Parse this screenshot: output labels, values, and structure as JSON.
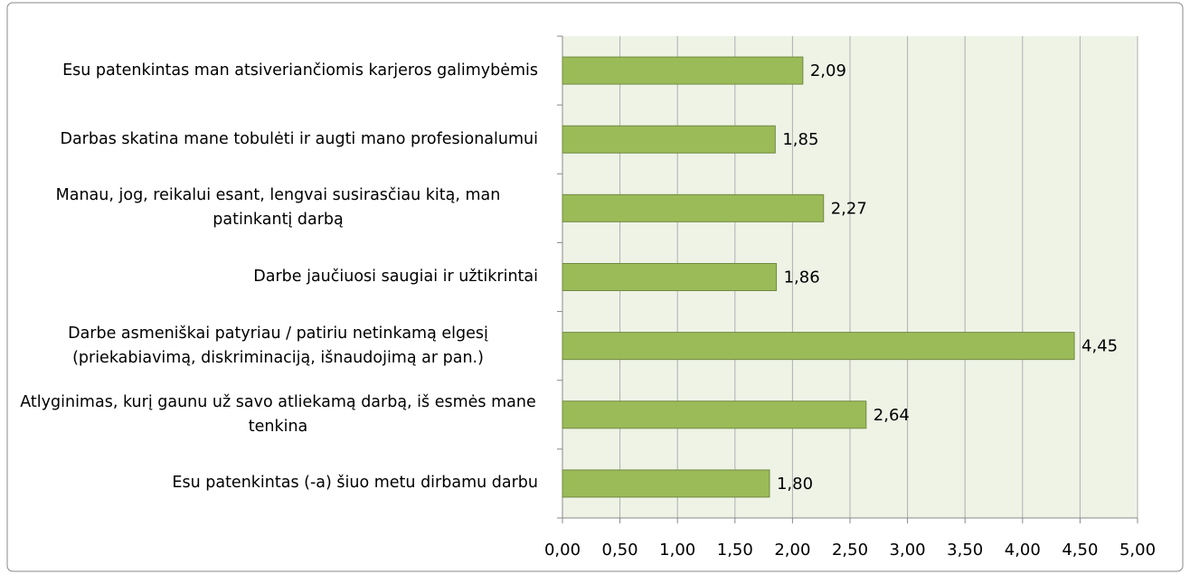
{
  "chart_data": {
    "type": "barh",
    "categories": [
      "Esu patenkintas man atsiveriančiomis karjeros galimybėmis",
      "Darbas skatina mane tobulėti ir augti mano profesionalumui",
      "Manau, jog, reikalui esant, lengvai susirasčiau kitą, man patinkantį darbą",
      "Darbe jaučiuosi saugiai ir užtikrintai",
      "Darbe asmeniškai patyriau / patiriu netinkamą elgesį (priekabiavimą, diskriminaciją, išnaudojimą ar pan.)",
      "Atlyginimas, kurį gaunu už savo atliekamą darbą, iš esmės mane tenkina",
      "Esu patenkintas (-a) šiuo metu dirbamu darbu"
    ],
    "values": [
      2.09,
      1.85,
      2.27,
      1.86,
      4.45,
      2.64,
      1.8
    ],
    "value_labels": [
      "2,09",
      "1,85",
      "2,27",
      "1,86",
      "4,45",
      "2,64",
      "1,80"
    ],
    "color": "#9bbb59",
    "xlim": [
      0,
      5
    ],
    "xticks": [
      {
        "value": 0,
        "label": "0,00"
      },
      {
        "value": 0.5,
        "label": "0,50"
      },
      {
        "value": 1,
        "label": "1,00"
      },
      {
        "value": 1.5,
        "label": "1,50"
      },
      {
        "value": 2,
        "label": "2,00"
      },
      {
        "value": 2.5,
        "label": "2,50"
      },
      {
        "value": 3,
        "label": "3,00"
      },
      {
        "value": 3.5,
        "label": "3,50"
      },
      {
        "value": 4,
        "label": "4,00"
      },
      {
        "value": 4.5,
        "label": "4,50"
      },
      {
        "value": 5,
        "label": "5,00"
      }
    ],
    "grid": true
  }
}
